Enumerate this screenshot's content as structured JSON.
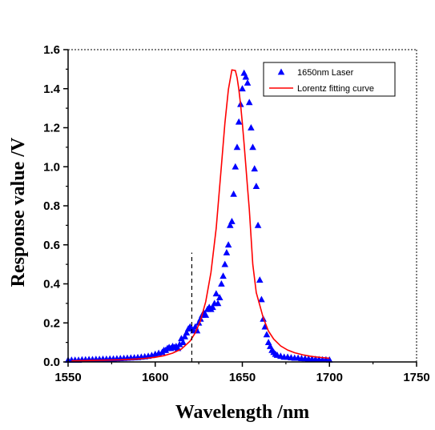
{
  "chart_data": {
    "type": "scatter",
    "xlabel": "Wavelength /nm",
    "ylabel": "Response value /V",
    "xlim": [
      1550,
      1750
    ],
    "ylim": [
      0,
      1.6
    ],
    "x_ticks": [
      1550,
      1600,
      1650,
      1700,
      1750
    ],
    "y_ticks": [
      0.0,
      0.2,
      0.4,
      0.6,
      0.8,
      1.0,
      1.2,
      1.4,
      1.6
    ],
    "x_tick_labels": [
      "1550",
      "1600",
      "1650",
      "1700",
      "1750"
    ],
    "y_tick_labels": [
      "0.0",
      "0.2",
      "0.4",
      "0.6",
      "0.8",
      "1.0",
      "1.2",
      "1.4",
      "1.6"
    ],
    "grid": false,
    "legend_position": "top-right",
    "series": [
      {
        "name": "1650nm Laser",
        "type": "scatter",
        "marker": "triangle",
        "color": "#0000ff",
        "x": [
          1550,
          1552,
          1554,
          1556,
          1558,
          1560,
          1562,
          1564,
          1566,
          1568,
          1570,
          1572,
          1574,
          1576,
          1578,
          1580,
          1582,
          1584,
          1586,
          1588,
          1590,
          1592,
          1594,
          1596,
          1598,
          1600,
          1602,
          1604,
          1605,
          1606,
          1607,
          1608,
          1609,
          1610,
          1611,
          1612,
          1613,
          1614,
          1615,
          1616,
          1617,
          1618,
          1619,
          1620,
          1621,
          1622,
          1623,
          1624,
          1625,
          1626,
          1627,
          1628,
          1629,
          1630,
          1631,
          1632,
          1633,
          1634,
          1635,
          1636,
          1637,
          1638,
          1639,
          1640,
          1641,
          1642,
          1643,
          1644,
          1645,
          1646,
          1647,
          1648,
          1649,
          1650,
          1651,
          1652,
          1653,
          1654,
          1655,
          1656,
          1657,
          1658,
          1659,
          1660,
          1661,
          1662,
          1663,
          1664,
          1665,
          1666,
          1667,
          1668,
          1669,
          1670,
          1672,
          1674,
          1676,
          1678,
          1680,
          1682,
          1684,
          1686,
          1688,
          1690,
          1692,
          1694,
          1696,
          1698,
          1700
        ],
        "y": [
          0.01,
          0.01,
          0.01,
          0.01,
          0.012,
          0.012,
          0.013,
          0.013,
          0.014,
          0.014,
          0.015,
          0.015,
          0.016,
          0.016,
          0.017,
          0.018,
          0.019,
          0.02,
          0.021,
          0.022,
          0.023,
          0.025,
          0.027,
          0.03,
          0.034,
          0.04,
          0.045,
          0.05,
          0.06,
          0.06,
          0.07,
          0.075,
          0.07,
          0.08,
          0.075,
          0.08,
          0.07,
          0.09,
          0.12,
          0.1,
          0.13,
          0.15,
          0.17,
          0.18,
          0.17,
          0.16,
          0.18,
          0.16,
          0.2,
          0.22,
          0.24,
          0.25,
          0.24,
          0.27,
          0.28,
          0.27,
          0.28,
          0.3,
          0.35,
          0.3,
          0.33,
          0.4,
          0.44,
          0.5,
          0.56,
          0.6,
          0.7,
          0.72,
          0.86,
          1.0,
          1.1,
          1.23,
          1.32,
          1.4,
          1.48,
          1.46,
          1.43,
          1.33,
          1.2,
          1.1,
          0.99,
          0.9,
          0.7,
          0.42,
          0.32,
          0.22,
          0.18,
          0.14,
          0.1,
          0.08,
          0.06,
          0.05,
          0.04,
          0.035,
          0.03,
          0.025,
          0.025,
          0.022,
          0.02,
          0.02,
          0.018,
          0.017,
          0.016,
          0.015,
          0.014,
          0.013,
          0.012,
          0.012,
          0.011
        ]
      },
      {
        "name": "Lorentz fitting curve",
        "type": "line",
        "color": "#ff0000",
        "x": [
          1552,
          1560,
          1570,
          1580,
          1590,
          1595,
          1600,
          1605,
          1610,
          1615,
          1620,
          1623,
          1626,
          1629,
          1632,
          1635,
          1638,
          1640,
          1642,
          1644,
          1646,
          1647,
          1648,
          1649,
          1650,
          1651,
          1652,
          1653,
          1654,
          1656,
          1658,
          1660,
          1662,
          1665,
          1668,
          1672,
          1676,
          1680,
          1685,
          1690,
          1695,
          1700
        ],
        "y": [
          0.006,
          0.007,
          0.009,
          0.011,
          0.015,
          0.019,
          0.024,
          0.032,
          0.045,
          0.066,
          0.107,
          0.149,
          0.212,
          0.309,
          0.459,
          0.685,
          1.006,
          1.224,
          1.396,
          1.496,
          1.493,
          1.456,
          1.396,
          1.319,
          1.224,
          1.118,
          1.006,
          0.892,
          0.782,
          0.5,
          0.355,
          0.291,
          0.226,
          0.158,
          0.117,
          0.082,
          0.061,
          0.047,
          0.036,
          0.028,
          0.023,
          0.019
        ]
      }
    ],
    "annotations": [
      {
        "type": "vertical-dashed-line",
        "x": 1621,
        "y_range": [
          0.0,
          0.56
        ]
      }
    ]
  }
}
